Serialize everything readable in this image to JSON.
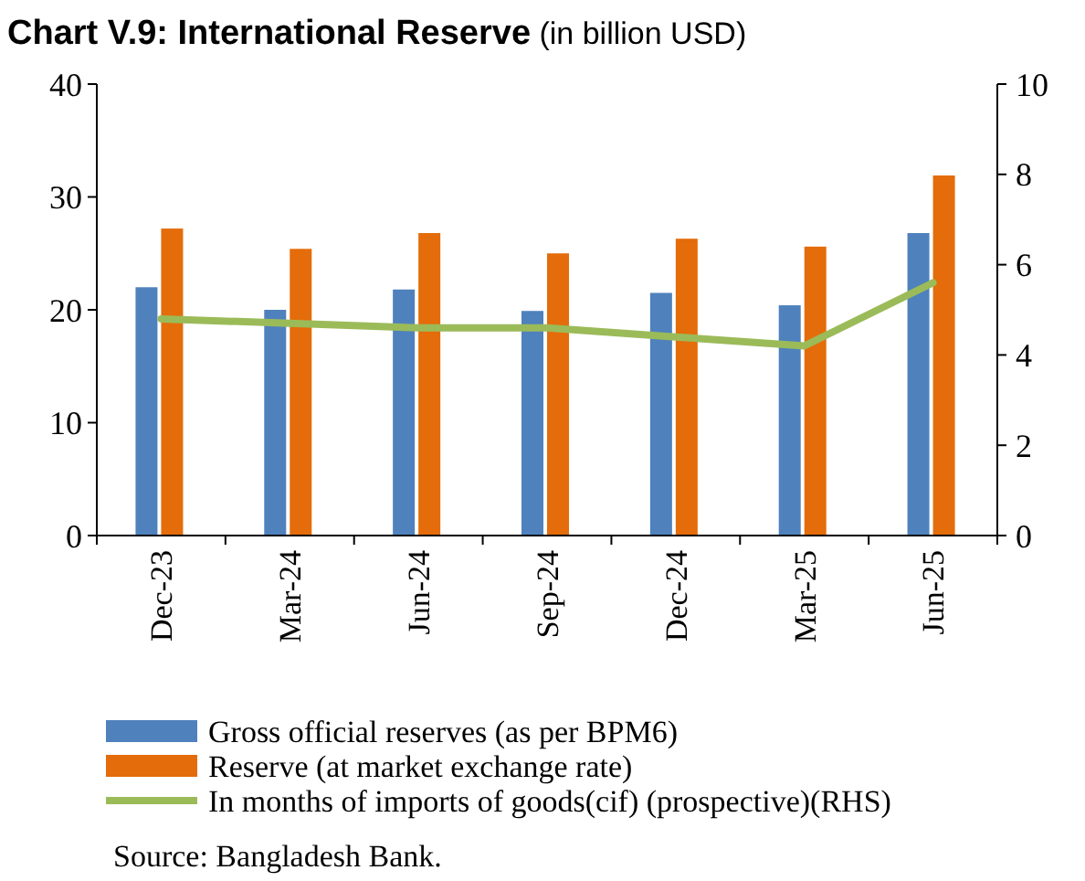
{
  "chart_data": {
    "type": "bar",
    "title": "Chart V.9: International Reserve",
    "subtitle": "(in billion USD)",
    "categories": [
      "Dec-23",
      "Mar-24",
      "Jun-24",
      "Sep-24",
      "Dec-24",
      "Mar-25",
      "Jun-25"
    ],
    "series": [
      {
        "name": "Gross official reserves (as per BPM6)",
        "color": "#4f81bd",
        "values": [
          22.0,
          20.0,
          21.8,
          19.9,
          21.5,
          20.4,
          26.8
        ]
      },
      {
        "name": "Reserve (at market exchange rate)",
        "color": "#e46c0a",
        "values": [
          27.2,
          25.4,
          26.8,
          25.0,
          26.3,
          25.6,
          31.9
        ]
      },
      {
        "name": "In months of imports of goods(cif) (prospective)(RHS)",
        "color": "#9bbb59",
        "type": "line",
        "axis": "y2",
        "values": [
          4.8,
          4.7,
          4.6,
          4.6,
          4.4,
          4.2,
          5.6
        ]
      }
    ],
    "ylim": [
      0,
      40
    ],
    "yticks": [
      0,
      10,
      20,
      30,
      40
    ],
    "y2lim": [
      0,
      10
    ],
    "y2ticks": [
      0,
      2,
      4,
      6,
      8,
      10
    ],
    "legend": "bottom",
    "grid": false,
    "marker": "none",
    "annotations": [
      "Source: Bangladesh Bank."
    ]
  }
}
